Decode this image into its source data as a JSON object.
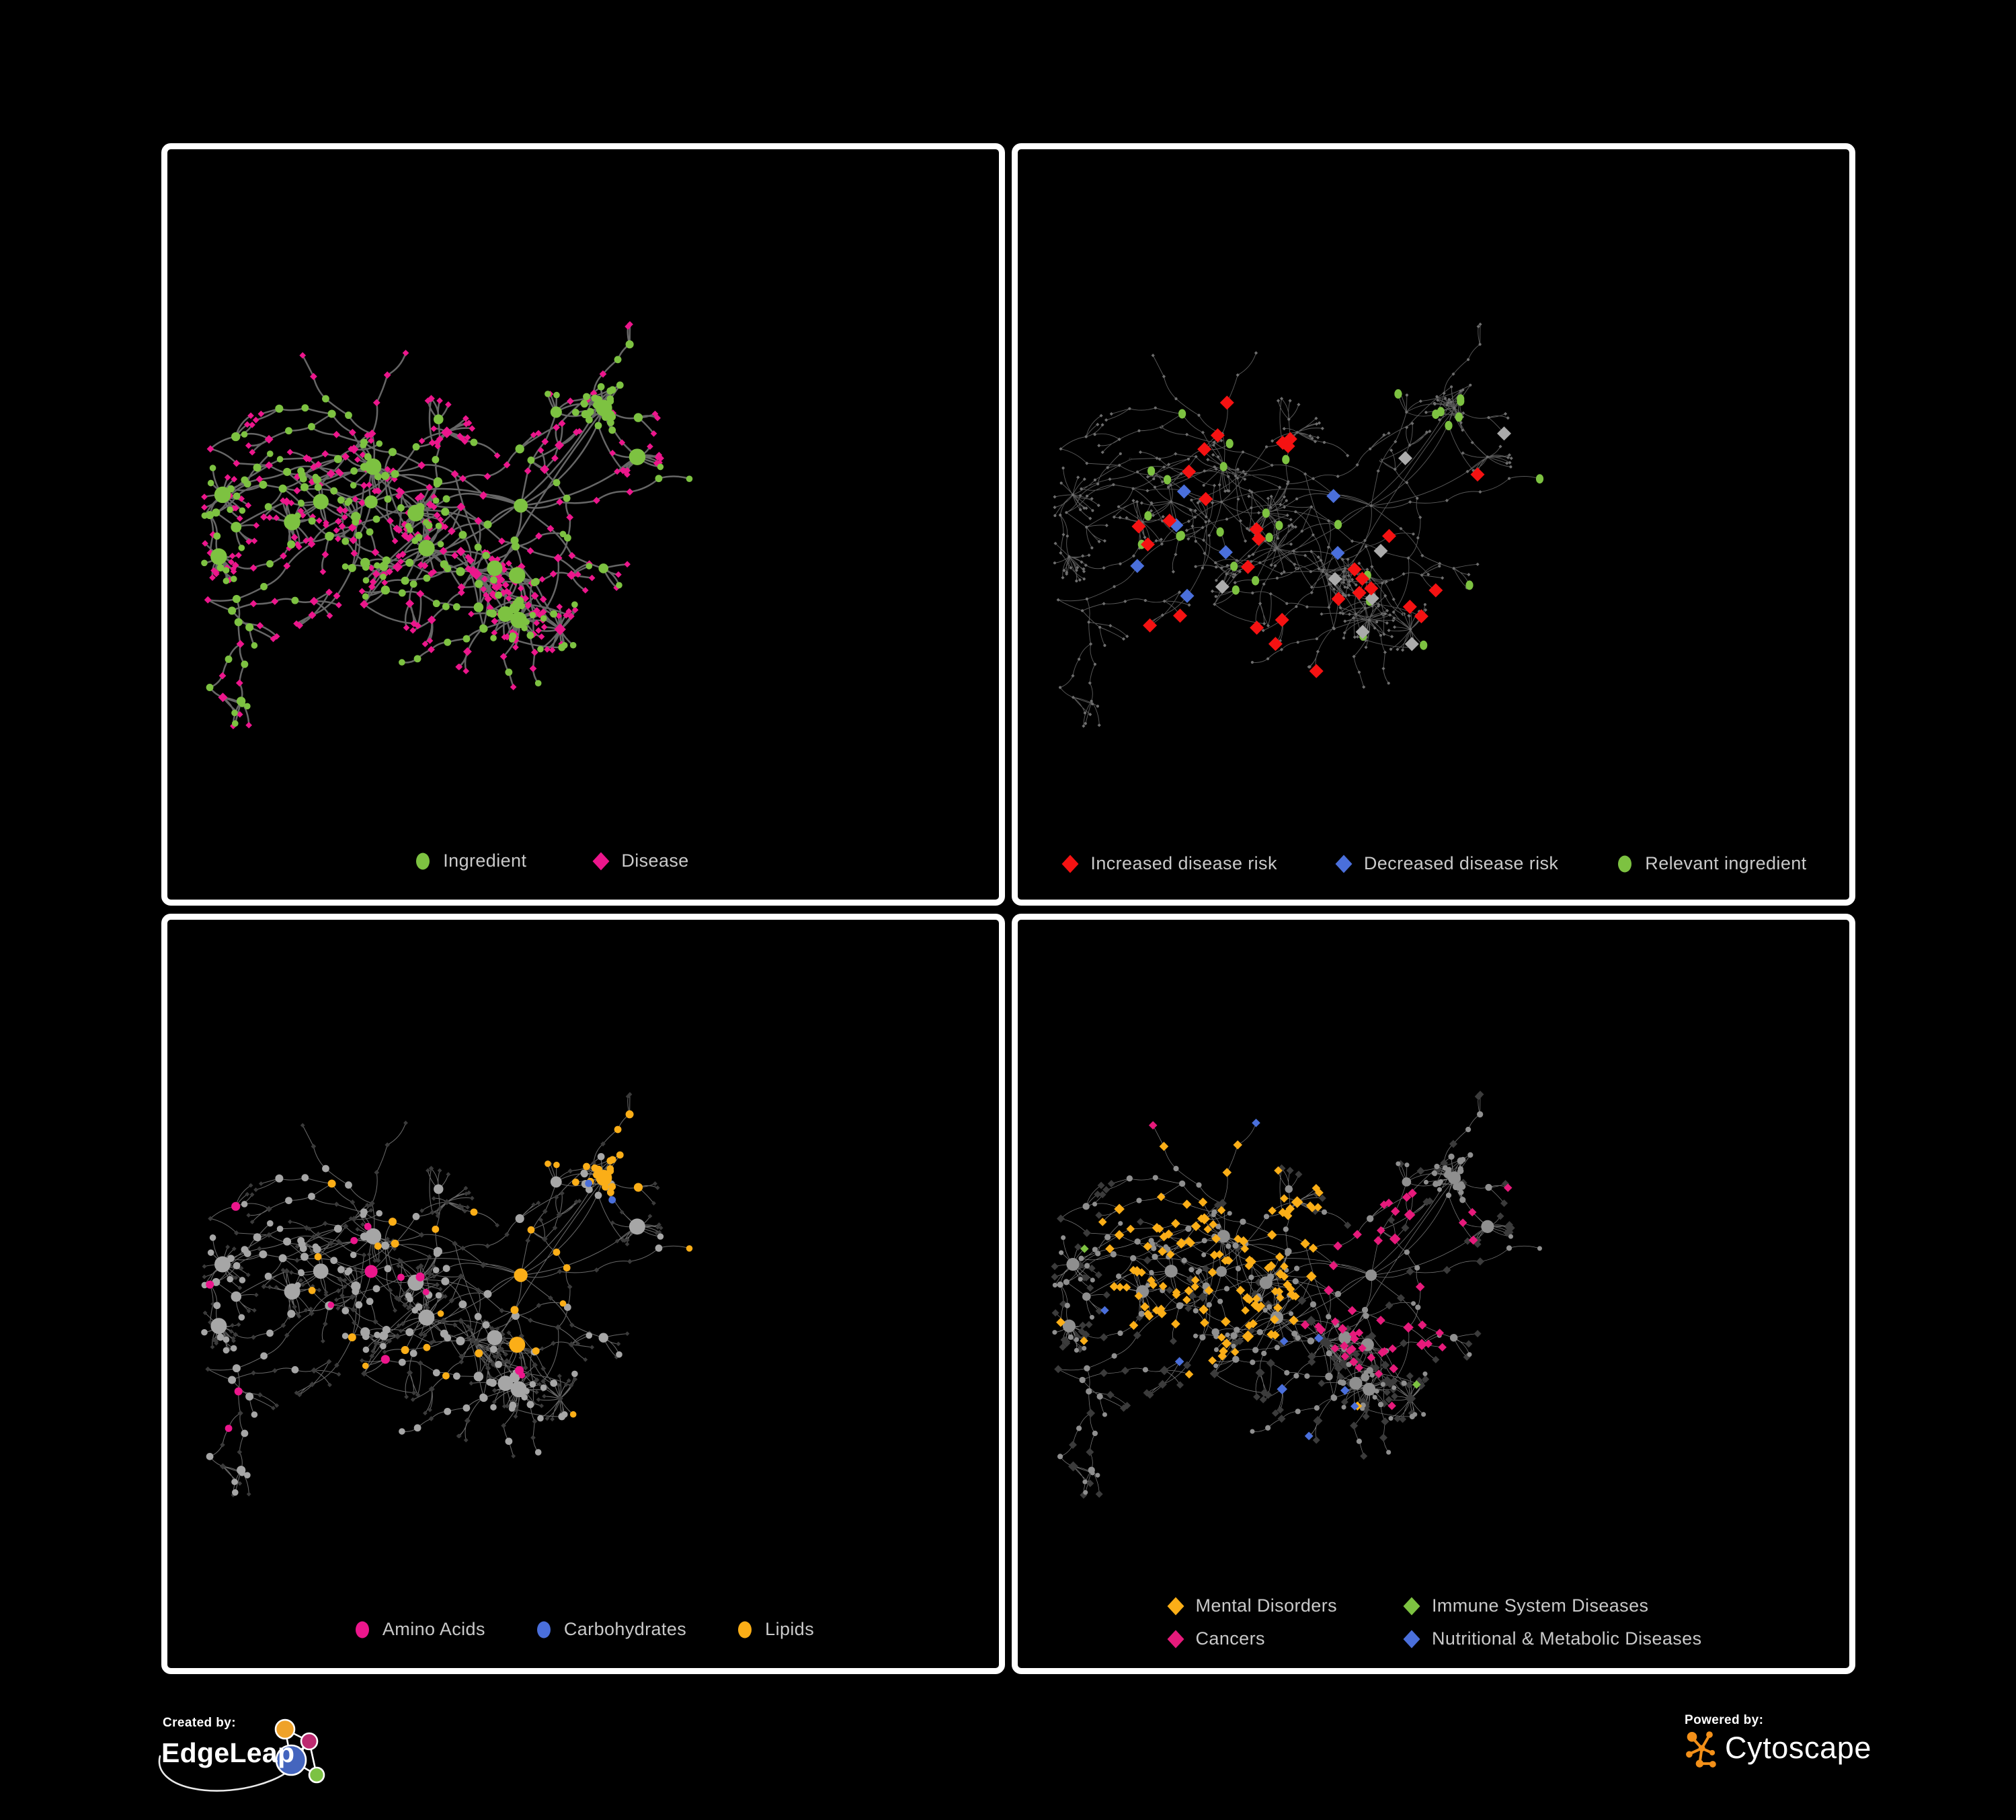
{
  "background_color": "#000000",
  "panel_border_color": "#ffffff",
  "legend_text_color": "#c9c9c9",
  "colors": {
    "green": "#7dc241",
    "pink": "#ec168c",
    "cancer_pink": "#e61a7b",
    "red": "#f51212",
    "blue": "#4a6fdb",
    "amber": "#fbae17",
    "neutral_diamond": "#ababab",
    "tiny_node": "#6e6e6e",
    "ing_gray": "#a6a6a6",
    "hub_gray": "#8f8f8f",
    "dark_diamond": "#3b3b3b",
    "edge_p1": "#6f6f6f",
    "edge_p2": "#5d5d5d",
    "edge_p3": "#828282",
    "edge_p4": "#8f8f8f"
  },
  "panels": [
    {
      "id": "ingredient-disease",
      "legend": [
        {
          "label": "Ingredient",
          "shape": "circle",
          "color": "#7dc241"
        },
        {
          "label": "Disease",
          "shape": "diamond",
          "color": "#ec168c"
        }
      ]
    },
    {
      "id": "disease-risk",
      "legend": [
        {
          "label": "Increased disease risk",
          "shape": "diamond",
          "color": "#f51212"
        },
        {
          "label": "Decreased disease risk",
          "shape": "diamond",
          "color": "#4a6fdb"
        },
        {
          "label": "Relevant ingredient",
          "shape": "circle",
          "color": "#7dc241"
        }
      ]
    },
    {
      "id": "nutrient-classes",
      "legend": [
        {
          "label": "Amino Acids",
          "shape": "circle",
          "color": "#ec168c"
        },
        {
          "label": "Carbohydrates",
          "shape": "circle",
          "color": "#4a6fdb"
        },
        {
          "label": "Lipids",
          "shape": "circle",
          "color": "#fbae17"
        }
      ]
    },
    {
      "id": "disease-categories",
      "legend": [
        {
          "label": "Mental Disorders",
          "shape": "diamond",
          "color": "#fbae17"
        },
        {
          "label": "Immune System Diseases",
          "shape": "diamond",
          "color": "#7dc241"
        },
        {
          "label": "Cancers",
          "shape": "diamond",
          "color": "#e61a7b"
        },
        {
          "label": "Nutritional & Metabolic Diseases",
          "shape": "diamond",
          "color": "#4a6fdb"
        }
      ]
    }
  ],
  "footer": {
    "created_by": "Created by:",
    "edgeleap": "EdgeLeap",
    "powered_by": "Powered by:",
    "cytoscape": "Cytoscape"
  },
  "network": {
    "seed": 1337,
    "max_nodes": 575,
    "clump_size": 26,
    "cross_links": 62,
    "long_links": 9,
    "branch_chance": 0.3,
    "burst_chance": 0.045,
    "forced_bursts": [
      {
        "fx": 0.5,
        "fy": 0.7,
        "leaves": 20
      },
      {
        "fx": 0.62,
        "fy": 0.55,
        "leaves": 15
      },
      {
        "fx": 0.29,
        "fy": 0.6,
        "leaves": 12
      },
      {
        "fx": 0.55,
        "fy": 0.83,
        "leaves": 16
      },
      {
        "fx": 0.13,
        "fy": 0.52,
        "leaves": 10
      },
      {
        "fx": 0.85,
        "fy": 0.42,
        "leaves": 11
      }
    ]
  }
}
